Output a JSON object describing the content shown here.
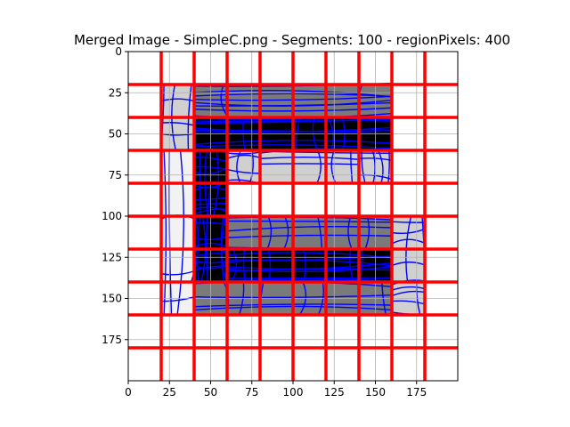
{
  "chart_data": {
    "type": "heatmap",
    "title": "Merged Image - SimpleC.png - Segments: 100 - regionPixels: 400",
    "xlabel": "",
    "ylabel": "",
    "xlim": [
      0,
      200
    ],
    "ylim": [
      200,
      0
    ],
    "y_inverted": true,
    "grid": true,
    "x_ticks": [
      0,
      25,
      50,
      75,
      100,
      125,
      150,
      175
    ],
    "y_ticks": [
      0,
      25,
      50,
      75,
      100,
      125,
      150,
      175
    ],
    "image_extent": [
      20,
      180,
      20,
      160
    ],
    "segment_grid_x": [
      20,
      40,
      60,
      80,
      100,
      120,
      140,
      160,
      180
    ],
    "segment_grid_y": [
      20,
      40,
      60,
      80,
      100,
      120,
      140,
      160,
      180
    ],
    "cells": [
      {
        "x0": 20,
        "y0": 20,
        "x1": 40,
        "y1": 60,
        "shade": "light"
      },
      {
        "x0": 40,
        "y0": 20,
        "x1": 160,
        "y1": 40,
        "shade": "mid"
      },
      {
        "x0": 40,
        "y0": 40,
        "x1": 160,
        "y1": 60,
        "shade": "dark"
      },
      {
        "x0": 40,
        "y0": 60,
        "x1": 60,
        "y1": 100,
        "shade": "dark"
      },
      {
        "x0": 60,
        "y0": 60,
        "x1": 80,
        "y1": 80,
        "shade": "light"
      },
      {
        "x0": 80,
        "y0": 60,
        "x1": 140,
        "y1": 80,
        "shade": "light"
      },
      {
        "x0": 140,
        "y0": 60,
        "x1": 160,
        "y1": 80,
        "shade": "light"
      },
      {
        "x0": 20,
        "y0": 60,
        "x1": 40,
        "y1": 160,
        "shade": "pale"
      },
      {
        "x0": 40,
        "y0": 100,
        "x1": 60,
        "y1": 140,
        "shade": "dark"
      },
      {
        "x0": 60,
        "y0": 100,
        "x1": 160,
        "y1": 120,
        "shade": "mid"
      },
      {
        "x0": 60,
        "y0": 120,
        "x1": 160,
        "y1": 140,
        "shade": "dark"
      },
      {
        "x0": 160,
        "y0": 100,
        "x1": 180,
        "y1": 140,
        "shade": "light"
      },
      {
        "x0": 40,
        "y0": 140,
        "x1": 160,
        "y1": 160,
        "shade": "mid"
      },
      {
        "x0": 160,
        "y0": 140,
        "x1": 180,
        "y1": 160,
        "shade": "light"
      }
    ],
    "colors": {
      "segment_lines": "#ff0000",
      "contour_lines": "#0000ff",
      "pale": "#f2f2f2",
      "light": "#d0d0d0",
      "mid": "#7a7a7a",
      "dark": "#000000"
    }
  }
}
